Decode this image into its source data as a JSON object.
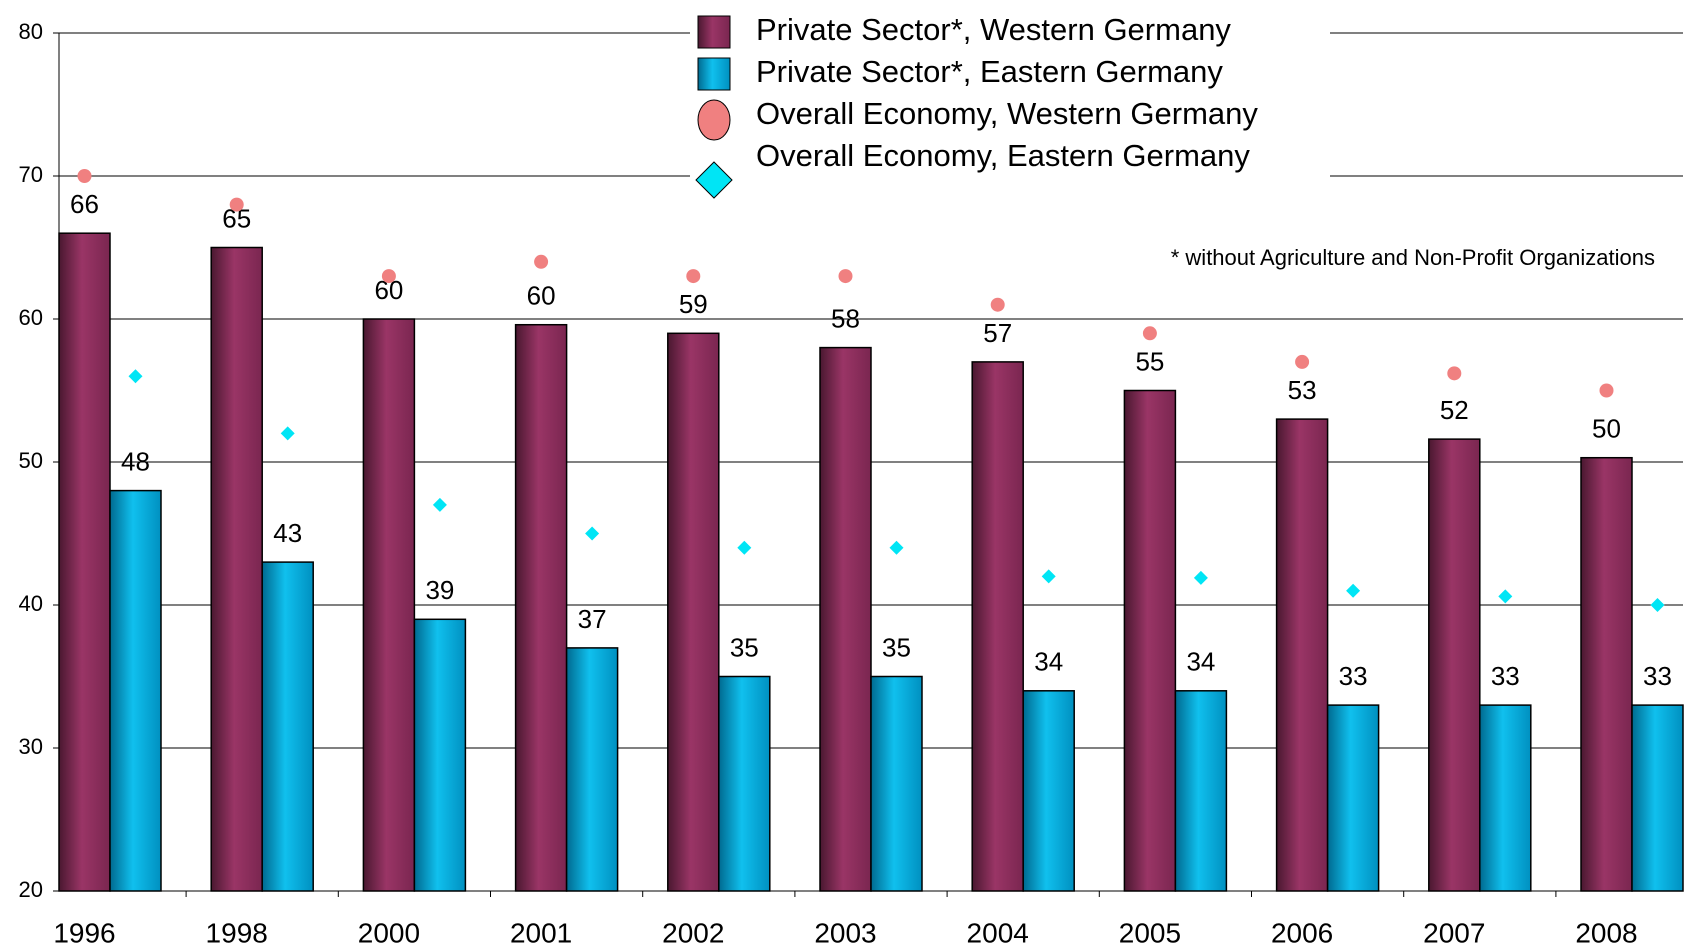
{
  "chart_data": {
    "type": "bar",
    "categories": [
      "1996",
      "1998",
      "2000",
      "2001",
      "2002",
      "2003",
      "2004",
      "2005",
      "2006",
      "2007",
      "2008"
    ],
    "series": [
      {
        "name": "Private Sector*, Western Germany",
        "color": "#953060",
        "mark": "bar",
        "values": [
          66,
          65,
          60,
          59.6,
          59,
          58,
          57,
          55,
          53,
          51.6,
          50.3
        ],
        "value_labels": [
          "66",
          "65",
          "60",
          "60",
          "59",
          "58",
          "57",
          "55",
          "53",
          "52",
          "50"
        ]
      },
      {
        "name": "Private Sector*, Eastern Germany",
        "color": "#00b0e0",
        "mark": "bar",
        "values": [
          48,
          43,
          39,
          37,
          35,
          35,
          34,
          34,
          33,
          33,
          33
        ],
        "value_labels": [
          "48",
          "43",
          "39",
          "37",
          "35",
          "35",
          "34",
          "34",
          "33",
          "33",
          "33"
        ]
      },
      {
        "name": "Overall Economy, Western Germany",
        "color": "#f08080",
        "mark": "circle",
        "values": [
          70,
          68,
          63,
          64,
          63,
          63,
          61,
          59,
          57,
          56.2,
          55
        ]
      },
      {
        "name": "Overall Economy, Eastern Germany",
        "color": "#00e5f5",
        "mark": "diamond",
        "values": [
          56,
          52,
          47,
          45,
          44,
          44,
          42,
          41.9,
          41,
          40.6,
          40
        ]
      }
    ],
    "ylim": [
      20,
      80
    ],
    "yticks": [
      20,
      30,
      40,
      50,
      60,
      70,
      80
    ],
    "grid": true,
    "legend": "top",
    "annotations": [
      "* without Agriculture and Non-Profit Organizations"
    ]
  }
}
